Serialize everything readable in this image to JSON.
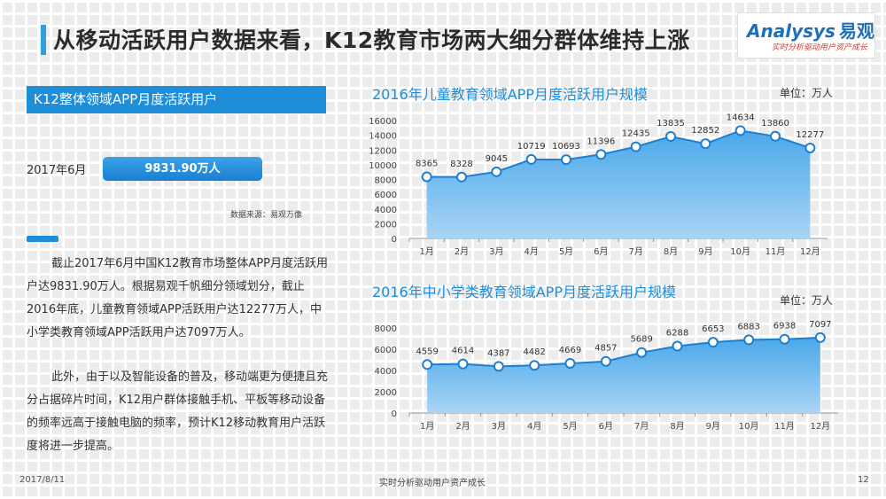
{
  "header": {
    "title": "从移动活跃用户数据来看，K12教育市场两大细分群体维持上涨"
  },
  "logo": {
    "brand_en": "Analysys",
    "brand_cn": "易观",
    "slogan": "实时分析驱动用户资产成长"
  },
  "left_panel": {
    "section_title": "K12整体领域APP月度活跃用户",
    "date_label": "2017年6月",
    "value": "9831.90万人",
    "source": "数据来源：易观万像",
    "paragraph1": "截止2017年6月中国K12教育市场整体APP月度活跃用户达9831.90万人。根据易观千帆细分领域划分，截止2016年底，儿童教育领域APP活跃用户达12277万人，中小学类教育领域APP活跃用户达7097万人。",
    "paragraph2": "此外，由于以及智能设备的普及，移动端更为便捷且充分占据碎片时间，K12用户群体接触手机、平板等移动设备的频率远高于接触电脑的频率，预计K12移动教育用户活跃度将进一步提高。"
  },
  "footer": {
    "date": "2017/8/11",
    "slogan": "实时分析驱动用户资产成长",
    "page": "12"
  },
  "colors": {
    "accent": "#1f8ed8",
    "area_top": "#4aa8ea",
    "area_bottom": "#a8d4f5",
    "marker_stroke": "#1f7fcf"
  },
  "chart_data": [
    {
      "type": "area",
      "title": "2016年儿童教育领域APP月度活跃用户规模",
      "unit": "单位：万人",
      "categories": [
        "1月",
        "2月",
        "3月",
        "4月",
        "5月",
        "6月",
        "7月",
        "8月",
        "9月",
        "10月",
        "11月",
        "12月"
      ],
      "values": [
        8365,
        8328,
        9045,
        10719,
        10693,
        11396,
        12435,
        13835,
        12852,
        14634,
        13860,
        12277
      ],
      "ylim": [
        0,
        16000
      ],
      "yticks": [
        0,
        2000,
        4000,
        6000,
        8000,
        10000,
        12000,
        14000,
        16000
      ],
      "grid": false
    },
    {
      "type": "area",
      "title": "2016年中小学类教育领域APP月度活跃用户规模",
      "unit": "单位：万人",
      "categories": [
        "1月",
        "2月",
        "3月",
        "4月",
        "5月",
        "6月",
        "7月",
        "8月",
        "9月",
        "10月",
        "11月",
        "12月"
      ],
      "values": [
        4559,
        4614,
        4387,
        4482,
        4669,
        4857,
        5689,
        6288,
        6653,
        6883,
        6938,
        7097
      ],
      "ylim": [
        0,
        8000
      ],
      "yticks": [
        0,
        2000,
        4000,
        6000,
        8000
      ],
      "grid": false
    }
  ]
}
